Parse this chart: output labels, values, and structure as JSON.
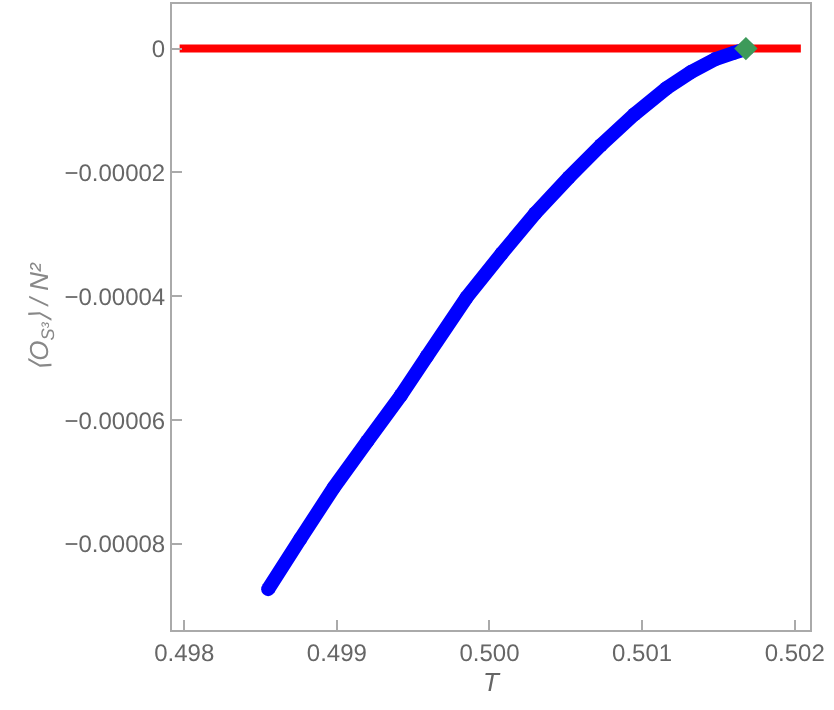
{
  "chart_data": {
    "type": "line",
    "xlabel": "T",
    "ylabel": "⟨O$_{S³}$⟩ / N²",
    "xlim": [
      0.49792,
      0.5021
    ],
    "xticks": [
      {
        "value": 0.498,
        "label": "0.498"
      },
      {
        "value": 0.499,
        "label": "0.499"
      },
      {
        "value": 0.5,
        "label": "0.500"
      },
      {
        "value": 0.501,
        "label": "0.501"
      },
      {
        "value": 0.502,
        "label": "0.502"
      }
    ],
    "ylim": [
      -9.39e-05,
      7.2e-06
    ],
    "yticks": [
      0,
      {
        "value": -2e-05,
        "label": "−0.00002"
      },
      {
        "value": -4e-05,
        "label": "−0.00004"
      },
      {
        "value": -6e-05,
        "label": "−0.00006"
      },
      {
        "value": -8e-05,
        "label": "−0.00008"
      }
    ],
    "series": [
      {
        "type": "line",
        "color": "#ff0000",
        "x": [
          0.49797,
          0.50204
        ],
        "values": [
          0,
          0
        ],
        "marker": "none"
      },
      {
        "color": "#0000ff",
        "x": [
          0.49855,
          0.49876,
          0.49898,
          0.4992,
          0.49942,
          0.49959,
          0.49985,
          0.50008,
          0.5003,
          0.50052,
          0.50073,
          0.50095,
          0.50116,
          0.50132,
          0.50148,
          0.5016,
          0.50169
        ],
        "values": [
          -8.73e-05,
          -7.92e-05,
          -7.09e-05,
          -6.34e-05,
          -5.6e-05,
          -4.97e-05,
          -4.02e-05,
          -3.31e-05,
          -2.66e-05,
          -2.08e-05,
          -1.56e-05,
          -1.06e-05,
          -6.4e-06,
          -3.8e-06,
          -1.7e-06,
          -7e-07,
          0
        ],
        "marker": "circle"
      },
      {
        "type": "scatter",
        "color": "#3d9a5a",
        "x": [
          0.50168
        ],
        "values": [
          0
        ],
        "marker": "diamond"
      }
    ]
  }
}
